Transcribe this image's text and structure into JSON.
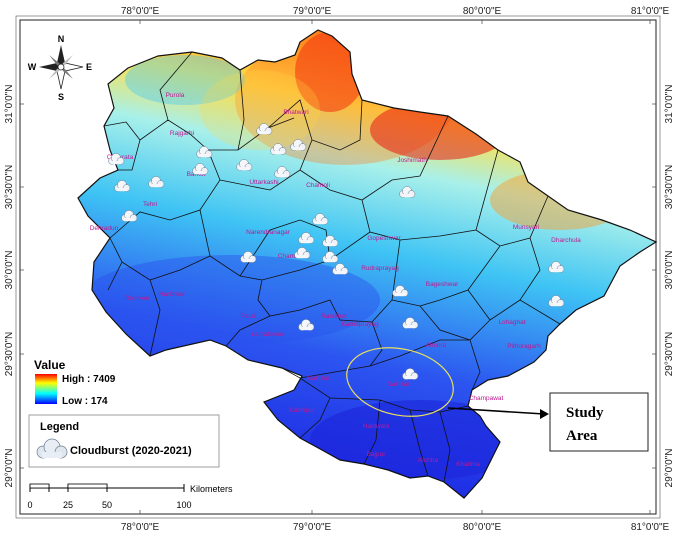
{
  "map": {
    "top_coords": [
      "78°0'0\"E",
      "79°0'0\"E",
      "80°0'0\"E",
      "81°0'0\"E"
    ],
    "bottom_coords": [
      "78°0'0\"E",
      "79°0'0\"E",
      "80°0'0\"E",
      "81°0'0\"E"
    ],
    "left_coords": [
      "31°0'0\"N",
      "30°30'0\"N",
      "30°0'0\"N",
      "29°30'0\"N",
      "29°0'0\"N"
    ],
    "right_coords": [
      "31°0'0\"N",
      "30°30'0\"N",
      "30°0'0\"N",
      "29°30'0\"N",
      "29°0'0\"N"
    ],
    "places": [
      "Purola",
      "Bhatwari",
      "Rajgarhi",
      "Chakrata",
      "Joshimath",
      "Barkot",
      "Uttarkashi",
      "Chamoli",
      "Tehri",
      "Dehradun",
      "Narendranagar",
      "Chamba",
      "Gopeshwar",
      "Munsyari",
      "Dharchula",
      "Rudraprayag",
      "Pauri",
      "Roorkee",
      "Haridwar",
      "Bageshwar",
      "Karnaprayag",
      "Lansdowne",
      "Almora",
      "Ranikhet",
      "Pithoragarh",
      "Lohaghat",
      "Nainital",
      "Nainital",
      "Champawat",
      "Kashipur",
      "Haldwani",
      "Bajpur",
      "Kichha",
      "Khatima"
    ]
  },
  "compass": {
    "n": "N",
    "s": "S",
    "e": "E",
    "w": "W"
  },
  "value_legend": {
    "title": "Value",
    "high_label": "High : 7409",
    "low_label": "Low : 174",
    "high_value": 7409,
    "low_value": 174
  },
  "legend": {
    "title": "Legend",
    "item_label": "Cloudburst (2020-2021)",
    "icon": "cloud-icon"
  },
  "scale": {
    "ticks": [
      "0",
      "25",
      "50",
      "100"
    ],
    "unit": "Kilometers"
  },
  "study_area": {
    "label_line1": "Study",
    "label_line2": "Area"
  },
  "colors": {
    "high": "#ff0000",
    "mid": "#ffff00",
    "mid_low": "#00ffff",
    "low": "#0000ff",
    "place_label": "#c01890",
    "study_ellipse": "#e8e060"
  }
}
